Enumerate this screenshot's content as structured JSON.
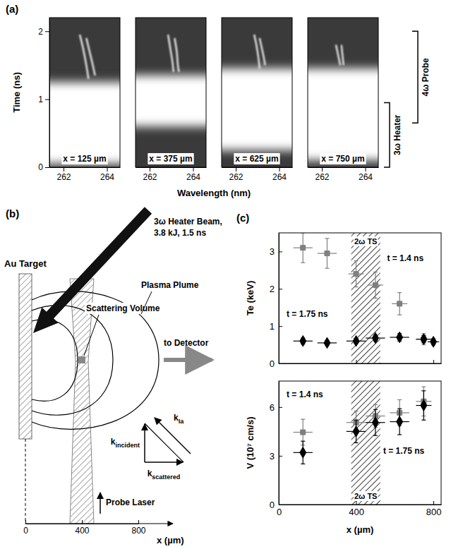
{
  "chart_data": [
    {
      "type": "streak",
      "title": "(a)",
      "xlabel": "Wavelength (nm)",
      "ylabel": "Time (ns)",
      "xlim": [
        261.35,
        264.6
      ],
      "xticks": [
        262,
        264
      ],
      "ylim": [
        0,
        2.2
      ],
      "yticks": [
        0,
        1,
        2
      ],
      "panels": [
        {
          "label": "x = 125 µm",
          "glow": [
            0.05,
            1.25
          ],
          "series": [
            {
              "x": [
                263.15,
                263.05,
                262.9,
                262.75
              ],
              "values": [
                1.3,
                1.5,
                1.75,
                1.95
              ]
            },
            {
              "x": [
                263.45,
                263.35,
                263.2,
                263.05
              ],
              "values": [
                1.35,
                1.5,
                1.7,
                1.9
              ]
            }
          ]
        },
        {
          "label": "x = 375 µm",
          "glow": [
            0.6,
            1.35
          ],
          "series": [
            {
              "x": [
                263.1,
                263.05,
                262.95,
                262.85
              ],
              "values": [
                1.4,
                1.55,
                1.75,
                1.95
              ]
            },
            {
              "x": [
                263.35,
                263.3,
                263.25,
                263.15
              ],
              "values": [
                1.4,
                1.5,
                1.7,
                1.9
              ]
            }
          ]
        },
        {
          "label": "x = 625 µm",
          "glow": [
            0.25,
            1.45
          ],
          "series": [
            {
              "x": [
                263.1,
                263.05,
                262.95,
                262.85
              ],
              "values": [
                1.45,
                1.6,
                1.8,
                1.95
              ]
            },
            {
              "x": [
                263.35,
                263.3,
                263.2,
                263.1
              ],
              "values": [
                1.5,
                1.6,
                1.75,
                1.9
              ]
            }
          ]
        },
        {
          "label": "x = 750 µm",
          "glow": [
            0.1,
            1.45
          ],
          "series": [
            {
              "x": [
                262.85,
                262.75,
                262.65
              ],
              "values": [
                1.5,
                1.65,
                1.8
              ]
            },
            {
              "x": [
                263.0,
                262.95,
                262.9
              ],
              "values": [
                1.5,
                1.65,
                1.8
              ]
            }
          ]
        }
      ],
      "timings": [
        {
          "label": "3ω Heater",
          "start": 0,
          "end": 0.95
        },
        {
          "label": "4ω Probe",
          "start": 0.65,
          "end": 2.0
        }
      ]
    },
    {
      "type": "scatter",
      "title": "(c)",
      "ylabel": "Te (keV)",
      "xlim": [
        0,
        840
      ],
      "xticks": [
        0,
        400,
        800
      ],
      "ylim": [
        0,
        3.5
      ],
      "yticks": [
        0,
        1,
        2,
        3
      ],
      "tick_labels": "y",
      "bands": [
        {
          "label": "2ω TS",
          "x": [
            375,
            525
          ]
        }
      ],
      "series": [
        {
          "name": "t = 1.4 ns",
          "color": "#7f7f7f",
          "marker": "square",
          "x": [
            125,
            250,
            400,
            500,
            625,
            750
          ],
          "values": [
            3.1,
            2.95,
            2.4,
            2.1,
            1.6,
            0.65
          ],
          "x_errors": [
            50,
            50,
            40,
            40,
            40,
            40
          ],
          "y_errors": [
            0.4,
            0.4,
            0.35,
            0.35,
            0.3,
            0.15
          ]
        },
        {
          "name": "t = 1.75 ns",
          "color": "#000000",
          "marker": "diamond",
          "x": [
            125,
            250,
            400,
            500,
            625,
            750,
            800
          ],
          "values": [
            0.6,
            0.55,
            0.6,
            0.68,
            0.7,
            0.65,
            0.58
          ],
          "x_errors": [
            50,
            50,
            50,
            50,
            50,
            40,
            30
          ],
          "y_errors": [
            0.08,
            0.06,
            0.07,
            0.08,
            0.1,
            0.1,
            0.08
          ]
        }
      ]
    },
    {
      "type": "scatter",
      "xlabel": "x (µm)",
      "ylabel": "V (10⁷ cm/s)",
      "xlim": [
        0,
        840
      ],
      "xticks": [
        0,
        400,
        800
      ],
      "ylim": [
        0,
        7.6
      ],
      "yticks": [
        0,
        3,
        6
      ],
      "bands": [
        {
          "label": "2ω TS",
          "x": [
            375,
            525
          ]
        }
      ],
      "series": [
        {
          "name": "t = 1.4 ns",
          "color": "#7f7f7f",
          "marker": "square",
          "x": [
            125,
            400,
            500,
            625,
            750
          ],
          "values": [
            4.45,
            5.05,
            5.45,
            5.65,
            6.35
          ],
          "x_errors": [
            50,
            50,
            50,
            50,
            40
          ],
          "y_errors": [
            0.8,
            0.7,
            0.7,
            0.8,
            0.9
          ]
        },
        {
          "name": "t = 1.75 ns",
          "color": "#000000",
          "marker": "diamond",
          "x": [
            125,
            400,
            500,
            625,
            750
          ],
          "values": [
            3.2,
            4.5,
            5.05,
            5.1,
            6.1
          ],
          "x_errors": [
            50,
            50,
            50,
            50,
            40
          ],
          "y_errors": [
            0.7,
            0.7,
            0.8,
            0.8,
            0.9
          ]
        }
      ]
    }
  ],
  "diagram": {
    "label": "(b)",
    "heater": [
      "3ω Heater Beam,",
      "3.8 kJ, 1.5 ns"
    ],
    "target": "Au Target",
    "scattering_volume": "Scattering Volume",
    "plume": "Plasma Plume",
    "detector": "to Detector",
    "probe": "Probe Laser",
    "probe_x": 400,
    "k_incident": {
      "text": "k",
      "sub": "incident"
    },
    "k_scattered": {
      "text": "k",
      "sub": "scattered"
    },
    "k_ia": {
      "text": "k",
      "sub": "Ia"
    },
    "xticks": [
      0,
      400,
      800
    ],
    "xlabel": "x (µm)"
  }
}
